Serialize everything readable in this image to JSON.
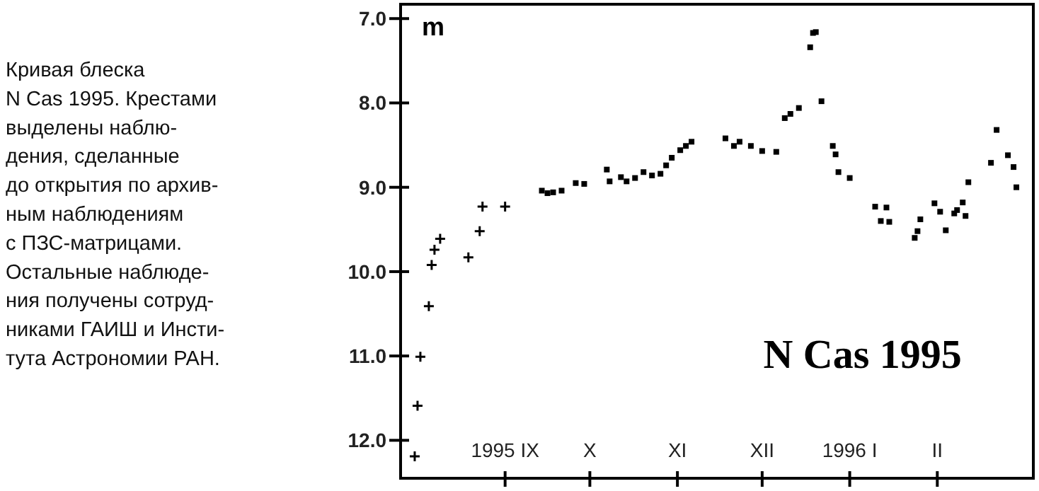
{
  "chart_data": {
    "type": "scatter",
    "title": "N Cas 1995",
    "ylabel": "m",
    "annotations": [
      "Кривая блеска\nN Cas 1995. Крестами\nвыделены наблю-\nдения, сделанные\nдо открытия по архив-\nным наблюдениям\nс ПЗС-матрицами.\nОстальные наблюде-\nния получены сотруд-\nниками ГАИШ и Инсти-\nтута Астрономии РАН."
    ],
    "xlim": [
      "1995-07-26",
      "1996-03-06"
    ],
    "xticks": [
      {
        "value": "1995-09-01",
        "label": "1995 IX"
      },
      {
        "value": "1995-10-01",
        "label": "X"
      },
      {
        "value": "1995-11-01",
        "label": "XI"
      },
      {
        "value": "1995-12-01",
        "label": "XII"
      },
      {
        "value": "1996-01-01",
        "label": "1996 I"
      },
      {
        "value": "1996-02-01",
        "label": "II"
      }
    ],
    "ylim": [
      12.45,
      6.83
    ],
    "yticks": [
      {
        "value": 7,
        "label": "7.0"
      },
      {
        "value": 8,
        "label": "8.0"
      },
      {
        "value": 9,
        "label": "9.0"
      },
      {
        "value": 10,
        "label": "10.0"
      },
      {
        "value": 11,
        "label": "11.0"
      },
      {
        "value": 12,
        "label": "12.0"
      }
    ],
    "series": [
      {
        "color": "#000000",
        "marker": "cross",
        "x": [
          "1995-07-31",
          "1995-08-01",
          "1995-08-02",
          "1995-08-05",
          "1995-08-06",
          "1995-08-07",
          "1995-08-09",
          "1995-08-19",
          "1995-08-23",
          "1995-08-24",
          "1995-09-01"
        ],
        "values": [
          12.19,
          11.59,
          11.01,
          10.41,
          9.92,
          9.74,
          9.61,
          9.83,
          9.52,
          9.23,
          9.23
        ]
      },
      {
        "color": "#000000",
        "marker": "square",
        "x": [
          "1995-09-14",
          "1995-09-16",
          "1995-09-18",
          "1995-09-21",
          "1995-09-26",
          "1995-09-29",
          "1995-10-07",
          "1995-10-08",
          "1995-10-12",
          "1995-10-14",
          "1995-10-17",
          "1995-10-20",
          "1995-10-23",
          "1995-10-26",
          "1995-10-28",
          "1995-10-30",
          "1995-11-02",
          "1995-11-04",
          "1995-11-06",
          "1995-11-18",
          "1995-11-21",
          "1995-11-23",
          "1995-11-27",
          "1995-12-01",
          "1995-12-06",
          "1995-12-09",
          "1995-12-11",
          "1995-12-14",
          "1995-12-18",
          "1995-12-19",
          "1995-12-20",
          "1995-12-22",
          "1995-12-26",
          "1995-12-27",
          "1995-12-28",
          "1996-01-01",
          "1996-01-10",
          "1996-01-12",
          "1996-01-14",
          "1996-01-15",
          "1996-01-24",
          "1996-01-25",
          "1996-01-26",
          "1996-01-31",
          "1996-02-02",
          "1996-02-04",
          "1996-02-07",
          "1996-02-08",
          "1996-02-10",
          "1996-02-11",
          "1996-02-12",
          "1996-02-20",
          "1996-02-22",
          "1996-02-26",
          "1996-02-28",
          "1996-02-29"
        ],
        "values": [
          9.04,
          9.07,
          9.06,
          9.04,
          8.95,
          8.96,
          8.79,
          8.93,
          8.88,
          8.93,
          8.89,
          8.82,
          8.86,
          8.84,
          8.74,
          8.65,
          8.56,
          8.51,
          8.46,
          8.42,
          8.51,
          8.46,
          8.51,
          8.57,
          8.58,
          8.18,
          8.13,
          8.06,
          7.34,
          7.17,
          7.16,
          7.98,
          8.51,
          8.61,
          8.82,
          8.89,
          9.23,
          9.4,
          9.24,
          9.41,
          9.6,
          9.52,
          9.38,
          9.19,
          9.29,
          9.51,
          9.31,
          9.27,
          9.18,
          9.34,
          8.94,
          8.71,
          8.32,
          8.62,
          8.76,
          9.0
        ]
      }
    ]
  }
}
